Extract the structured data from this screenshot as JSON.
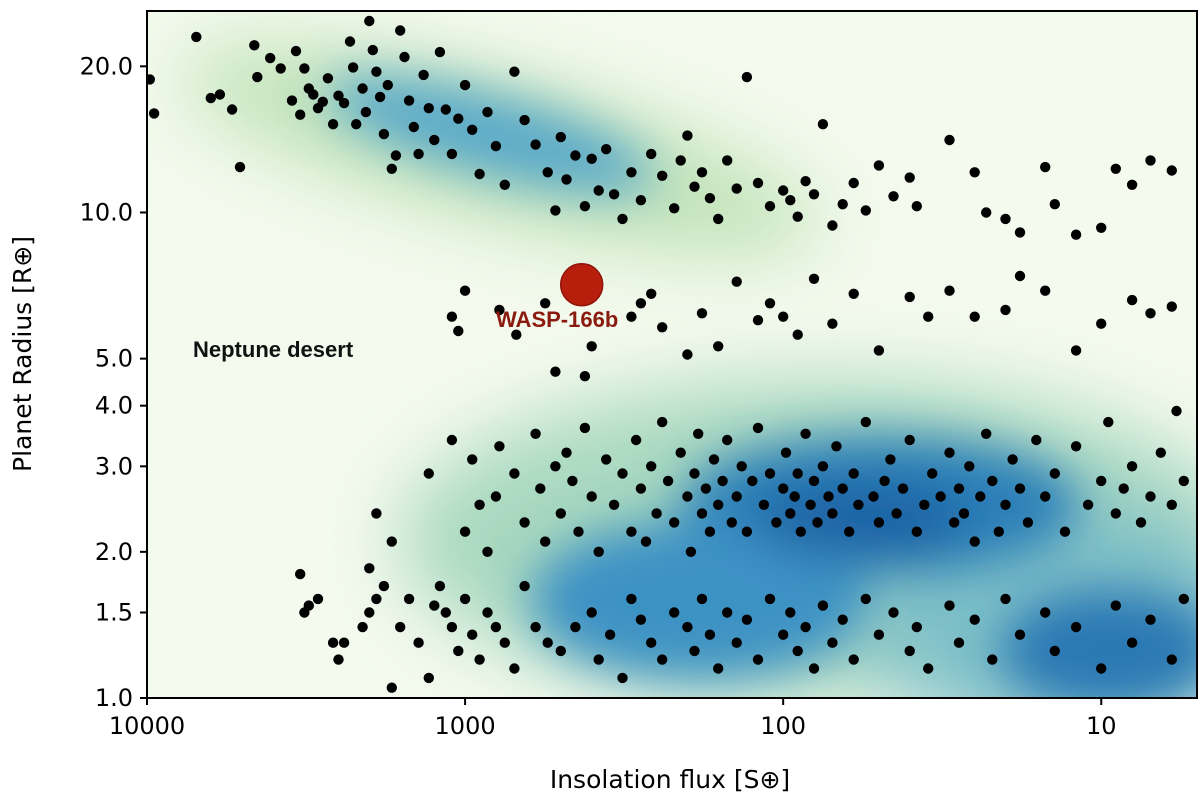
{
  "chart_data": {
    "type": "scatter",
    "xlabel": "Insolation flux [S⊕]",
    "ylabel": "Planet Radius [R⊕]",
    "x_scale": "log",
    "y_scale": "log",
    "x_reversed": true,
    "xlim": [
      10000,
      5
    ],
    "ylim": [
      1.0,
      26
    ],
    "x_ticks": [
      10000,
      1000,
      100,
      10
    ],
    "x_tick_labels": [
      "10000",
      "1000",
      "100",
      "10"
    ],
    "y_ticks": [
      1.0,
      1.5,
      2.0,
      3.0,
      4.0,
      5.0,
      10.0,
      20.0
    ],
    "y_tick_labels": [
      "1.0",
      "1.5",
      "2.0",
      "3.0",
      "4.0",
      "5.0",
      "10.0",
      "20.0"
    ],
    "grid": false,
    "background": "kernel density map (GnBu colormap)",
    "annotations": [
      {
        "text": "Neptune desert",
        "color": "#111111"
      },
      {
        "text": "WASP-166b",
        "color": "#8b1a10"
      }
    ],
    "highlight": {
      "label": "WASP-166b",
      "x": 430,
      "y": 7.1,
      "color": "#b81e0c"
    },
    "points": [
      [
        9800,
        18.8
      ],
      [
        9500,
        16
      ],
      [
        7000,
        23
      ],
      [
        6300,
        17.2
      ],
      [
        5900,
        17.5
      ],
      [
        5400,
        16.3
      ],
      [
        5100,
        12.4
      ],
      [
        4600,
        22.1
      ],
      [
        4500,
        19
      ],
      [
        4100,
        20.8
      ],
      [
        3800,
        19.8
      ],
      [
        3500,
        17
      ],
      [
        3400,
        21.5
      ],
      [
        3300,
        15.9
      ],
      [
        3200,
        19.8
      ],
      [
        3100,
        18
      ],
      [
        3000,
        17.5
      ],
      [
        2900,
        16.4
      ],
      [
        2800,
        16.9
      ],
      [
        2700,
        18.9
      ],
      [
        2600,
        15.2
      ],
      [
        2500,
        17.4
      ],
      [
        2400,
        16.8
      ],
      [
        2300,
        22.5
      ],
      [
        2250,
        19.9
      ],
      [
        2200,
        15.2
      ],
      [
        2100,
        18
      ],
      [
        2050,
        16.1
      ],
      [
        2000,
        24.8
      ],
      [
        1950,
        21.6
      ],
      [
        1900,
        19.5
      ],
      [
        1850,
        17.3
      ],
      [
        1800,
        14.5
      ],
      [
        1750,
        18.3
      ],
      [
        1700,
        12.3
      ],
      [
        1650,
        13.1
      ],
      [
        1600,
        23.7
      ],
      [
        1550,
        20.9
      ],
      [
        1500,
        17
      ],
      [
        1450,
        15
      ],
      [
        1400,
        13.2
      ],
      [
        1350,
        19.2
      ],
      [
        1300,
        16.4
      ],
      [
        1250,
        14.1
      ],
      [
        1200,
        21.4
      ],
      [
        1150,
        16.3
      ],
      [
        1100,
        13.2
      ],
      [
        1050,
        15.6
      ],
      [
        1000,
        18.3
      ],
      [
        950,
        14.8
      ],
      [
        900,
        12
      ],
      [
        850,
        16.1
      ],
      [
        800,
        13.7
      ],
      [
        750,
        11.4
      ],
      [
        700,
        19.5
      ],
      [
        650,
        15.5
      ],
      [
        600,
        13.8
      ],
      [
        550,
        12.1
      ],
      [
        520,
        10.1
      ],
      [
        500,
        14.3
      ],
      [
        480,
        11.7
      ],
      [
        450,
        13.1
      ],
      [
        420,
        10.3
      ],
      [
        400,
        12.9
      ],
      [
        380,
        11.1
      ],
      [
        360,
        13.5
      ],
      [
        340,
        10.9
      ],
      [
        320,
        9.7
      ],
      [
        300,
        12.1
      ],
      [
        280,
        10.6
      ],
      [
        260,
        13.2
      ],
      [
        240,
        11.9
      ],
      [
        220,
        10.2
      ],
      [
        210,
        12.8
      ],
      [
        200,
        14.4
      ],
      [
        190,
        11.3
      ],
      [
        180,
        12.1
      ],
      [
        170,
        10.7
      ],
      [
        160,
        9.7
      ],
      [
        150,
        12.8
      ],
      [
        140,
        11.2
      ],
      [
        130,
        19
      ],
      [
        120,
        11.5
      ],
      [
        110,
        10.3
      ],
      [
        100,
        11.1
      ],
      [
        95,
        10.6
      ],
      [
        90,
        9.8
      ],
      [
        85,
        11.6
      ],
      [
        80,
        10.9
      ],
      [
        75,
        15.2
      ],
      [
        70,
        9.4
      ],
      [
        65,
        10.4
      ],
      [
        60,
        11.5
      ],
      [
        55,
        10.1
      ],
      [
        50,
        12.5
      ],
      [
        45,
        10.8
      ],
      [
        40,
        11.8
      ],
      [
        38,
        10.3
      ],
      [
        30,
        14.1
      ],
      [
        25,
        12.1
      ],
      [
        23,
        10
      ],
      [
        20,
        9.7
      ],
      [
        18,
        9.1
      ],
      [
        15,
        12.4
      ],
      [
        14,
        10.4
      ],
      [
        12,
        9
      ],
      [
        10,
        9.3
      ],
      [
        9,
        12.3
      ],
      [
        8,
        11.4
      ],
      [
        7,
        12.8
      ],
      [
        6,
        12.2
      ],
      [
        1000,
        6.9
      ],
      [
        1100,
        6.1
      ],
      [
        780,
        6.3
      ],
      [
        1050,
        5.7
      ],
      [
        690,
        5.6
      ],
      [
        560,
        6.5
      ],
      [
        520,
        4.7
      ],
      [
        420,
        4.6
      ],
      [
        400,
        5.3
      ],
      [
        300,
        6.1
      ],
      [
        280,
        6.5
      ],
      [
        260,
        6.8
      ],
      [
        240,
        5.8
      ],
      [
        200,
        5.1
      ],
      [
        180,
        6.2
      ],
      [
        160,
        5.3
      ],
      [
        140,
        7.2
      ],
      [
        120,
        6
      ],
      [
        110,
        6.5
      ],
      [
        100,
        6.1
      ],
      [
        90,
        5.6
      ],
      [
        80,
        7.3
      ],
      [
        70,
        5.9
      ],
      [
        60,
        6.8
      ],
      [
        50,
        5.2
      ],
      [
        40,
        6.7
      ],
      [
        35,
        6.1
      ],
      [
        30,
        6.9
      ],
      [
        25,
        6.1
      ],
      [
        20,
        6.3
      ],
      [
        18,
        7.4
      ],
      [
        15,
        6.9
      ],
      [
        12,
        5.2
      ],
      [
        10,
        5.9
      ],
      [
        8,
        6.6
      ],
      [
        7,
        6.2
      ],
      [
        6,
        6.4
      ],
      [
        3200,
        1.5
      ],
      [
        3100,
        1.55
      ],
      [
        2900,
        1.6
      ],
      [
        2600,
        1.3
      ],
      [
        2500,
        1.2
      ],
      [
        2400,
        1.3
      ],
      [
        2100,
        1.4
      ],
      [
        2000,
        1.5
      ],
      [
        1900,
        1.6
      ],
      [
        1800,
        1.7
      ],
      [
        1700,
        1.05
      ],
      [
        1600,
        1.4
      ],
      [
        1500,
        1.6
      ],
      [
        1400,
        1.3
      ],
      [
        1300,
        1.1
      ],
      [
        1250,
        1.55
      ],
      [
        1200,
        1.7
      ],
      [
        1150,
        1.5
      ],
      [
        1100,
        1.4
      ],
      [
        1050,
        1.25
      ],
      [
        1000,
        1.6
      ],
      [
        950,
        1.35
      ],
      [
        900,
        1.2
      ],
      [
        850,
        1.5
      ],
      [
        800,
        1.4
      ],
      [
        750,
        1.3
      ],
      [
        700,
        1.15
      ],
      [
        650,
        1.7
      ],
      [
        600,
        1.4
      ],
      [
        550,
        1.3
      ],
      [
        500,
        1.25
      ],
      [
        450,
        1.4
      ],
      [
        400,
        1.5
      ],
      [
        380,
        1.2
      ],
      [
        350,
        1.35
      ],
      [
        320,
        1.1
      ],
      [
        300,
        1.6
      ],
      [
        280,
        1.45
      ],
      [
        260,
        1.3
      ],
      [
        240,
        1.2
      ],
      [
        220,
        1.5
      ],
      [
        200,
        1.4
      ],
      [
        190,
        1.25
      ],
      [
        180,
        1.6
      ],
      [
        170,
        1.35
      ],
      [
        160,
        1.15
      ],
      [
        150,
        1.5
      ],
      [
        140,
        1.3
      ],
      [
        130,
        1.45
      ],
      [
        120,
        1.2
      ],
      [
        110,
        1.6
      ],
      [
        100,
        1.35
      ],
      [
        95,
        1.5
      ],
      [
        90,
        1.25
      ],
      [
        85,
        1.4
      ],
      [
        80,
        1.15
      ],
      [
        75,
        1.55
      ],
      [
        70,
        1.3
      ],
      [
        65,
        1.45
      ],
      [
        60,
        1.2
      ],
      [
        55,
        1.6
      ],
      [
        50,
        1.35
      ],
      [
        45,
        1.5
      ],
      [
        40,
        1.25
      ],
      [
        38,
        1.4
      ],
      [
        35,
        1.15
      ],
      [
        30,
        1.55
      ],
      [
        28,
        1.3
      ],
      [
        25,
        1.45
      ],
      [
        22,
        1.2
      ],
      [
        20,
        1.6
      ],
      [
        18,
        1.35
      ],
      [
        15,
        1.5
      ],
      [
        14,
        1.25
      ],
      [
        12,
        1.4
      ],
      [
        10,
        1.15
      ],
      [
        9,
        1.55
      ],
      [
        8,
        1.3
      ],
      [
        7,
        1.45
      ],
      [
        6,
        1.2
      ],
      [
        5.5,
        1.6
      ],
      [
        3300,
        1.8
      ],
      [
        2000,
        1.85
      ],
      [
        1900,
        2.4
      ],
      [
        1700,
        2.1
      ],
      [
        1300,
        2.9
      ],
      [
        1100,
        3.4
      ],
      [
        1000,
        2.2
      ],
      [
        950,
        3.1
      ],
      [
        900,
        2.5
      ],
      [
        850,
        2.0
      ],
      [
        800,
        2.6
      ],
      [
        780,
        3.3
      ],
      [
        700,
        2.9
      ],
      [
        650,
        2.3
      ],
      [
        600,
        3.5
      ],
      [
        580,
        2.7
      ],
      [
        560,
        2.1
      ],
      [
        520,
        3.0
      ],
      [
        500,
        2.4
      ],
      [
        480,
        3.2
      ],
      [
        460,
        2.8
      ],
      [
        440,
        2.2
      ],
      [
        420,
        3.6
      ],
      [
        400,
        2.6
      ],
      [
        380,
        2.0
      ],
      [
        360,
        3.1
      ],
      [
        340,
        2.5
      ],
      [
        320,
        2.9
      ],
      [
        300,
        2.2
      ],
      [
        290,
        3.4
      ],
      [
        280,
        2.7
      ],
      [
        270,
        2.1
      ],
      [
        260,
        3.0
      ],
      [
        250,
        2.4
      ],
      [
        240,
        3.7
      ],
      [
        230,
        2.8
      ],
      [
        220,
        2.3
      ],
      [
        210,
        3.2
      ],
      [
        200,
        2.6
      ],
      [
        195,
        2.0
      ],
      [
        190,
        2.9
      ],
      [
        185,
        3.5
      ],
      [
        180,
        2.4
      ],
      [
        175,
        2.7
      ],
      [
        170,
        2.2
      ],
      [
        165,
        3.1
      ],
      [
        160,
        2.5
      ],
      [
        155,
        2.8
      ],
      [
        150,
        3.4
      ],
      [
        145,
        2.3
      ],
      [
        140,
        2.6
      ],
      [
        135,
        3.0
      ],
      [
        130,
        2.2
      ],
      [
        125,
        2.8
      ],
      [
        120,
        3.6
      ],
      [
        115,
        2.5
      ],
      [
        110,
        2.9
      ],
      [
        105,
        2.3
      ],
      [
        100,
        2.7
      ],
      [
        98,
        3.2
      ],
      [
        95,
        2.4
      ],
      [
        92,
        2.6
      ],
      [
        90,
        2.9
      ],
      [
        88,
        2.2
      ],
      [
        85,
        3.5
      ],
      [
        82,
        2.5
      ],
      [
        80,
        2.8
      ],
      [
        78,
        2.3
      ],
      [
        75,
        3.0
      ],
      [
        72,
        2.6
      ],
      [
        70,
        2.4
      ],
      [
        68,
        3.3
      ],
      [
        65,
        2.7
      ],
      [
        62,
        2.2
      ],
      [
        60,
        2.9
      ],
      [
        58,
        2.5
      ],
      [
        55,
        3.7
      ],
      [
        52,
        2.6
      ],
      [
        50,
        2.3
      ],
      [
        48,
        2.8
      ],
      [
        46,
        3.1
      ],
      [
        44,
        2.4
      ],
      [
        42,
        2.7
      ],
      [
        40,
        3.4
      ],
      [
        38,
        2.2
      ],
      [
        36,
        2.5
      ],
      [
        34,
        2.9
      ],
      [
        32,
        2.6
      ],
      [
        30,
        3.2
      ],
      [
        29,
        2.3
      ],
      [
        28,
        2.7
      ],
      [
        27,
        2.4
      ],
      [
        26,
        3.0
      ],
      [
        25,
        2.1
      ],
      [
        24,
        2.6
      ],
      [
        23,
        3.5
      ],
      [
        22,
        2.8
      ],
      [
        21,
        2.2
      ],
      [
        20,
        2.5
      ],
      [
        19,
        3.1
      ],
      [
        18,
        2.7
      ],
      [
        17,
        2.3
      ],
      [
        16,
        3.4
      ],
      [
        15,
        2.6
      ],
      [
        14,
        2.9
      ],
      [
        13,
        2.2
      ],
      [
        12,
        3.3
      ],
      [
        11,
        2.5
      ],
      [
        10,
        2.8
      ],
      [
        9.5,
        3.7
      ],
      [
        9,
        2.4
      ],
      [
        8.5,
        2.7
      ],
      [
        8,
        3.0
      ],
      [
        7.5,
        2.3
      ],
      [
        7,
        2.6
      ],
      [
        6.5,
        3.2
      ],
      [
        6,
        2.5
      ],
      [
        5.8,
        3.9
      ],
      [
        5.5,
        2.8
      ]
    ]
  }
}
